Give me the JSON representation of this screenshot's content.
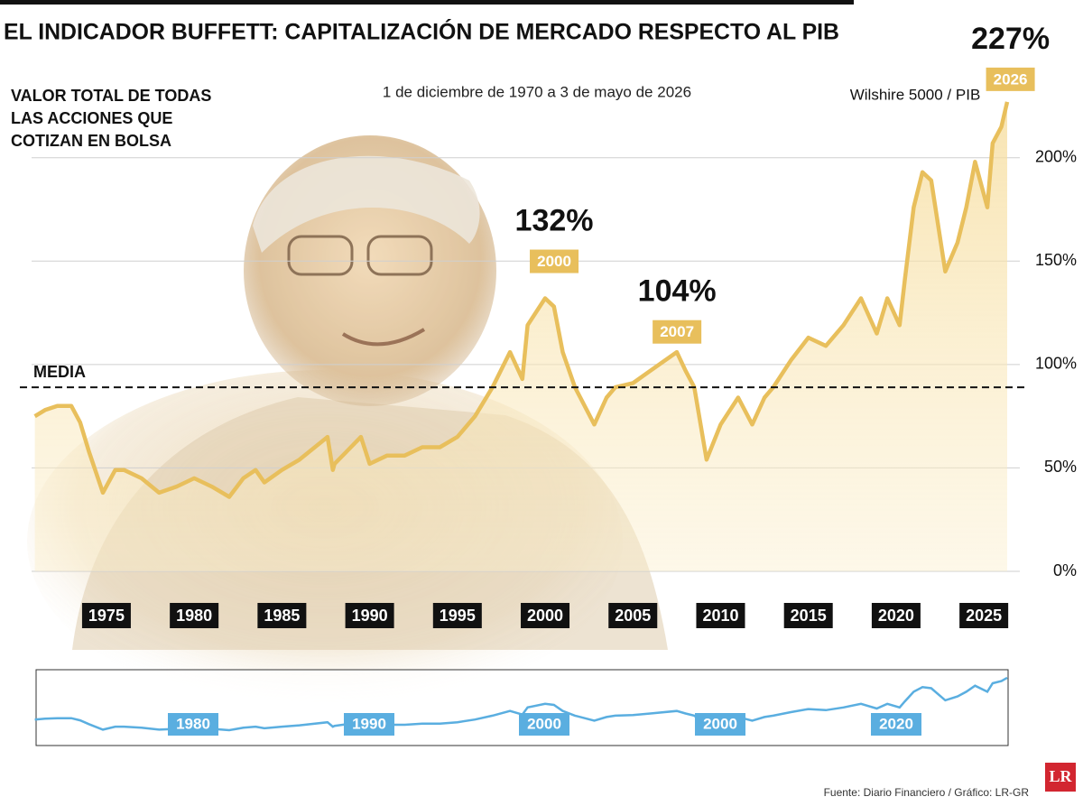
{
  "chart_data": {
    "type": "line",
    "title": "EL INDICADOR BUFFETT: CAPITALIZACIÓN DE MERCADO RESPECTO AL PIB",
    "subtitle": "1 de diciembre de 1970 a 3 de mayo de 2026",
    "y_label_lines": [
      "VALOR TOTAL DE TODAS",
      "LAS ACCIONES QUE",
      "COTIZAN EN BOLSA"
    ],
    "x": [
      1970.92,
      1971.5,
      1972.2,
      1973,
      1973.5,
      1974,
      1974.8,
      1975.5,
      1976,
      1977,
      1978,
      1979,
      1980,
      1981,
      1982,
      1982.8,
      1983.5,
      1984,
      1985,
      1986,
      1987.6,
      1987.9,
      1988,
      1989.5,
      1990,
      1991,
      1992,
      1993,
      1994,
      1995,
      1996,
      1997,
      1998,
      1998.7,
      1999,
      2000,
      2000.5,
      2001,
      2001.7,
      2002.8,
      2003.5,
      2004,
      2005,
      2006,
      2007.5,
      2008,
      2008.5,
      2009.2,
      2010,
      2011,
      2011.8,
      2012.5,
      2013,
      2014,
      2015,
      2016,
      2017,
      2018,
      2018.9,
      2019.5,
      2020.2,
      2020.5,
      2021,
      2021.5,
      2022,
      2022.8,
      2023.5,
      2024,
      2024.5,
      2025.2,
      2025.5,
      2026,
      2026.33
    ],
    "series": [
      {
        "name": "Wilshire 5000 / PIB",
        "color": "#e8bf5c",
        "values": [
          75,
          78,
          80,
          80,
          72,
          58,
          38,
          49,
          49,
          45,
          38,
          41,
          45,
          41,
          36,
          45,
          49,
          43,
          49,
          54,
          65,
          49,
          52,
          65,
          52,
          56,
          56,
          60,
          60,
          65,
          75,
          89,
          106,
          93,
          119,
          132,
          128,
          106,
          89,
          71,
          84,
          89,
          91,
          97,
          106,
          97,
          89,
          54,
          71,
          84,
          71,
          84,
          89,
          102,
          113,
          109,
          119,
          132,
          115,
          132,
          119,
          141,
          176,
          193,
          189,
          145,
          159,
          176,
          198,
          176,
          207,
          215,
          227
        ]
      }
    ],
    "xlim": [
      1970.92,
      2026.33
    ],
    "xticks": [
      1975,
      1980,
      1985,
      1990,
      1995,
      2000,
      2005,
      2010,
      2015,
      2020,
      2025
    ],
    "ylim": [
      0,
      230
    ],
    "yticks": [
      {
        "value": 0,
        "label": "0%"
      },
      {
        "value": 50,
        "label": "50%"
      },
      {
        "value": 100,
        "label": "100%"
      },
      {
        "value": 150,
        "label": "150%"
      },
      {
        "value": 200,
        "label": "200%"
      }
    ],
    "grid": true,
    "mean": {
      "label": "MEDIA",
      "value": 89
    },
    "annotations": [
      {
        "x": 2000,
        "label": "2000",
        "value": 132,
        "value_label": "132%"
      },
      {
        "x": 2007,
        "label": "2007",
        "value": 104,
        "value_label": "104%"
      },
      {
        "x": 2026,
        "label": "2026",
        "value": 227,
        "value_label": "227%"
      }
    ],
    "navigator": {
      "color": "#5aaee0",
      "labels": [
        "1980",
        "1990",
        "2000",
        "2000",
        "2020"
      ]
    },
    "source": "Fuente: Diario Financiero / Gráfico: LR-GR",
    "logo": "LR"
  }
}
